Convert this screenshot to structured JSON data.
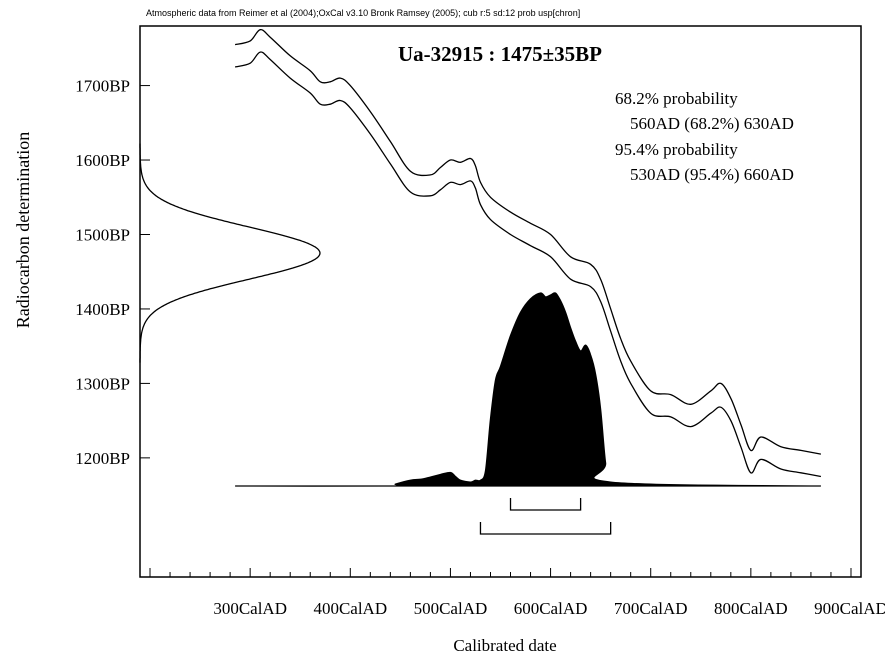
{
  "chart_data": {
    "type": "area",
    "header": "Atmospheric data from Reimer et al (2004);OxCal v3.10 Bronk Ramsey (2005); cub r:5 sd:12 prob usp[chron]",
    "title": "Ua-32915 : 1475±35BP",
    "xlabel": "Calibrated date",
    "ylabel": "Radiocarbon determination",
    "x_ticks": [
      300,
      400,
      500,
      600,
      700,
      800,
      900
    ],
    "x_tick_labels": [
      "300CalAD",
      "400CalAD",
      "500CalAD",
      "600CalAD",
      "700CalAD",
      "800CalAD",
      "900CalAD"
    ],
    "y_ticks": [
      1700,
      1600,
      1500,
      1400,
      1300,
      1200
    ],
    "y_tick_labels": [
      "1700BP",
      "1600BP",
      "1500BP",
      "1400BP",
      "1300BP",
      "1200BP"
    ],
    "xlim": [
      190,
      910
    ],
    "ylim": [
      1040,
      1780
    ],
    "annotations": [
      "68.2% probability",
      "560AD (68.2%) 630AD",
      "95.4% probability",
      "530AD (95.4%) 660AD"
    ],
    "radiocarbon": {
      "mean": 1475,
      "sd": 35
    },
    "ranges": [
      {
        "level": "68.2%",
        "from": 560,
        "to": 630
      },
      {
        "level": "95.4%",
        "from": 530,
        "to": 660
      }
    ],
    "calibration_curve": {
      "x": [
        285,
        300,
        310,
        320,
        340,
        360,
        370,
        380,
        390,
        400,
        420,
        440,
        460,
        480,
        490,
        500,
        510,
        520,
        525,
        530,
        540,
        560,
        580,
        600,
        620,
        640,
        650,
        660,
        670,
        680,
        700,
        720,
        740,
        760,
        770,
        780,
        790,
        800,
        810,
        830,
        850,
        870
      ],
      "upper": [
        1755,
        1760,
        1775,
        1765,
        1740,
        1720,
        1705,
        1705,
        1710,
        1700,
        1665,
        1625,
        1585,
        1580,
        1590,
        1600,
        1597,
        1602,
        1592,
        1570,
        1550,
        1530,
        1515,
        1500,
        1470,
        1460,
        1440,
        1400,
        1360,
        1330,
        1290,
        1285,
        1272,
        1290,
        1300,
        1280,
        1245,
        1210,
        1228,
        1215,
        1210,
        1205
      ],
      "lower": [
        1725,
        1730,
        1745,
        1735,
        1710,
        1690,
        1675,
        1675,
        1680,
        1670,
        1635,
        1595,
        1557,
        1552,
        1560,
        1570,
        1567,
        1572,
        1562,
        1540,
        1520,
        1500,
        1485,
        1470,
        1440,
        1430,
        1410,
        1370,
        1330,
        1300,
        1260,
        1255,
        1242,
        1260,
        1268,
        1250,
        1215,
        1180,
        1198,
        1185,
        1180,
        1175
      ]
    },
    "calibrated_distribution": {
      "x": [
        285,
        440,
        445,
        460,
        470,
        475,
        490,
        500,
        505,
        510,
        520,
        525,
        530,
        535,
        540,
        545,
        550,
        560,
        570,
        580,
        590,
        595,
        600,
        605,
        610,
        615,
        620,
        625,
        630,
        635,
        640,
        645,
        650,
        655,
        660,
        870
      ],
      "density": [
        0,
        0,
        0.01,
        0.03,
        0.035,
        0.04,
        0.06,
        0.07,
        0.05,
        0.03,
        0.02,
        0.03,
        0.03,
        0.08,
        0.35,
        0.55,
        0.62,
        0.78,
        0.9,
        0.97,
        1.0,
        0.98,
        0.99,
        1.0,
        0.96,
        0.9,
        0.82,
        0.75,
        0.7,
        0.73,
        0.68,
        0.58,
        0.4,
        0.12,
        0.02,
        0
      ]
    }
  }
}
